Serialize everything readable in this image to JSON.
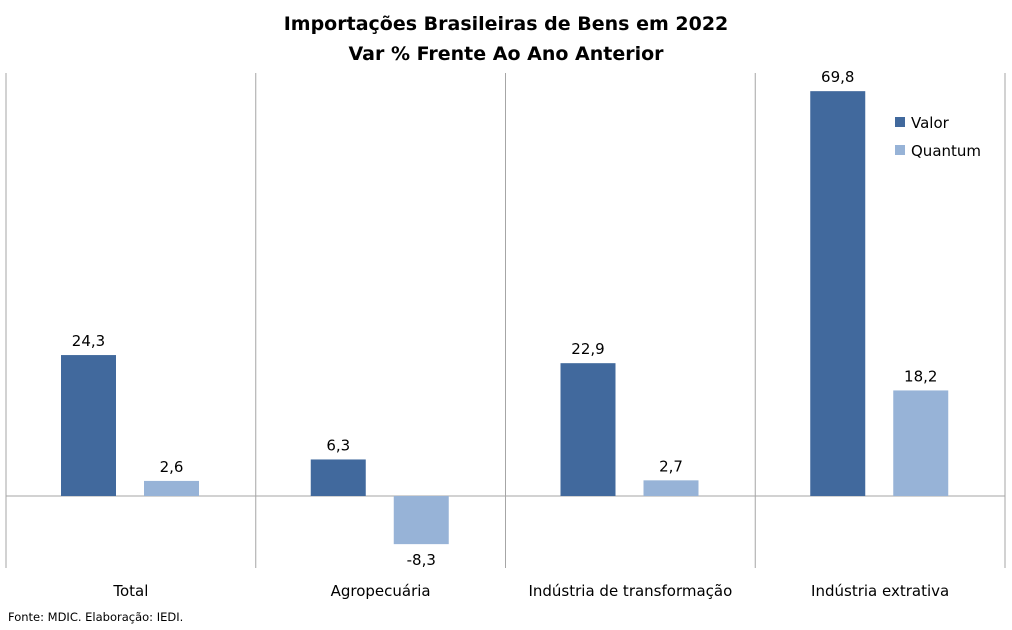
{
  "chart_data": {
    "type": "bar",
    "title": "Importações Brasileiras de Bens em 2022",
    "subtitle": "Var % Frente Ao Ano Anterior",
    "categories": [
      "Total",
      "Agropecuária",
      "Indústria de transformação",
      "Indústria extrativa"
    ],
    "series": [
      {
        "name": "Valor",
        "values": [
          24.3,
          6.3,
          22.9,
          69.8
        ],
        "labels": [
          "24,3",
          "6,3",
          "22,9",
          "69,8"
        ],
        "color": "#41699D"
      },
      {
        "name": "Quantum",
        "values": [
          2.6,
          -8.3,
          2.7,
          18.2
        ],
        "labels": [
          "2,6",
          "-8,3",
          "2,7",
          "18,2"
        ],
        "color": "#97B3D7"
      }
    ],
    "ylim": [
      -13,
      75
    ],
    "grid": false,
    "legend_position": "top-right"
  },
  "source_note": "Fonte: MDIC. Elaboração: IEDI."
}
